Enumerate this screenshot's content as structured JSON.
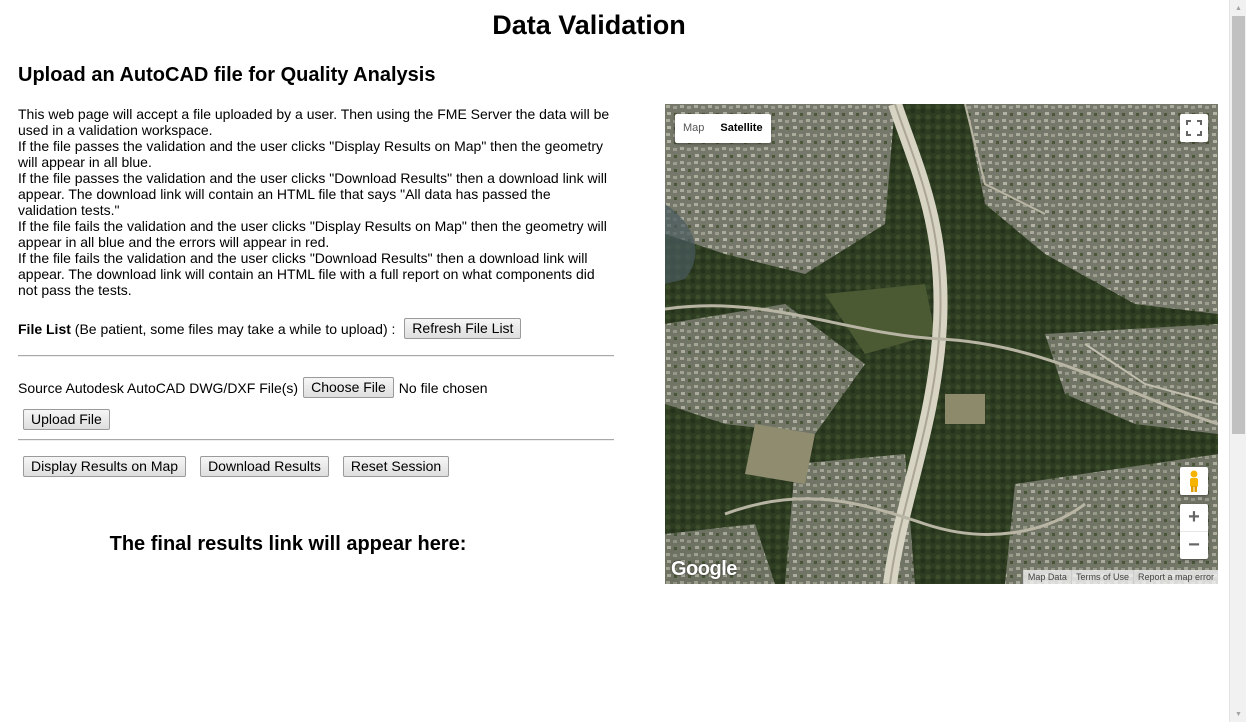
{
  "page": {
    "title": "Data Validation",
    "subtitle": "Upload an AutoCAD file for Quality Analysis"
  },
  "description": [
    "This web page will accept a file uploaded by a user. Then using the FME Server the data will be",
    "used in a validation workspace.",
    "If the file passes the validation and the user clicks \"Display Results on Map\" then the geometry",
    "will appear in all blue.",
    "If the file passes the validation and the user clicks \"Download Results\" then a download link will",
    "appear. The download link will contain an HTML file that says \"All data has passed the",
    "validation tests.\"",
    "If the file fails the validation and the user clicks \"Display Results on Map\" then the geometry will",
    "appear in all blue and the errors will appear in red.",
    "If the file fails the validation and the user clicks \"Download Results\" then a download link will",
    "appear. The download link will contain an HTML file with a full report on what components did",
    "not pass the tests."
  ],
  "file_list": {
    "label": "File List",
    "note": " (Be patient, some files may take a while to upload) : ",
    "refresh_button": "Refresh File List"
  },
  "upload": {
    "source_label": "Source Autodesk AutoCAD DWG/DXF File(s)",
    "choose_button": "Choose File",
    "no_file_text": "No file chosen",
    "upload_button": "Upload File"
  },
  "actions": {
    "display_button": "Display Results on Map",
    "download_button": "Download Results",
    "reset_button": "Reset Session"
  },
  "final_results_text": "The final results link will appear here:",
  "map": {
    "type_map": "Map",
    "type_satellite": "Satellite",
    "selected_type": "Satellite",
    "logo": "Google",
    "attribution": [
      "Map Data",
      "Terms of Use",
      "Report a map error"
    ],
    "zoom_in": "+",
    "zoom_out": "−",
    "icons": {
      "fullscreen": "fullscreen-icon",
      "pegman": "pegman-icon"
    }
  }
}
